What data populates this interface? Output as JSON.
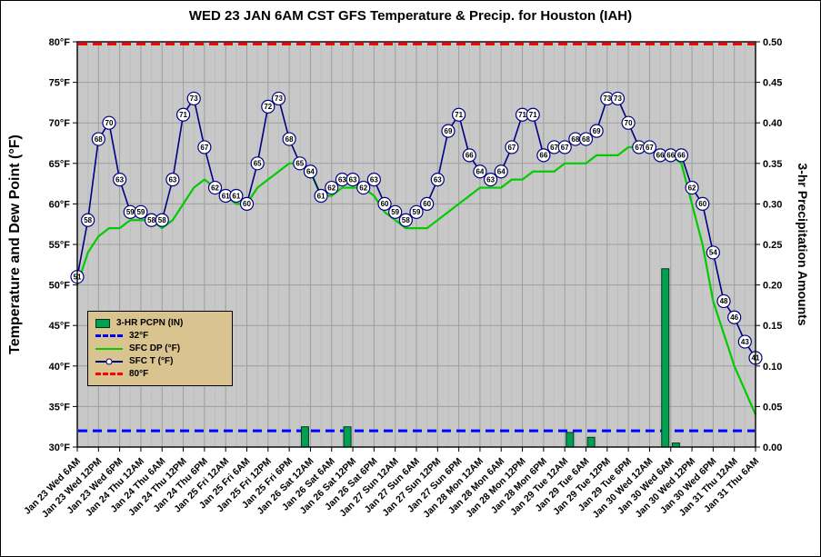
{
  "title": "WED 23 JAN 6AM CST GFS Temperature & Precip. for Houston (IAH)",
  "left_axis_title": "Temperature and Dew Point (°F)",
  "right_axis_title": "3-hr Precipitation Amounts",
  "colors": {
    "plot_background": "#C8C8C8",
    "grid_major": "#9E9E9E",
    "grid_minor": "#BDBDBD",
    "temperature_line": "#000080",
    "dewpoint_line": "#00CC00",
    "precip_bar": "#00A050",
    "precip_bar_border": "#003820",
    "freezing_line": "#0000FF",
    "eighty_line": "#FF0000",
    "legend_background": "#D9C38F"
  },
  "legend": {
    "items": [
      {
        "label": "3-HR PCPN (IN)",
        "swatch": "bar",
        "color": "#00A050"
      },
      {
        "label": "32°F",
        "swatch": "dashed",
        "color": "#0000FF"
      },
      {
        "label": "SFC DP (°F)",
        "swatch": "line",
        "color": "#00CC00"
      },
      {
        "label": "SFC T (°F)",
        "swatch": "line-marker",
        "color": "#000080"
      },
      {
        "label": "80°F",
        "swatch": "dashed",
        "color": "#FF0000"
      }
    ]
  },
  "chart_data": {
    "type": "line",
    "title": "WED 23 JAN 6AM CST GFS Temperature & Precip. for Houston (IAH)",
    "xlabel": "",
    "ylabel_left": "Temperature and Dew Point (°F)",
    "ylabel_right": "3-hr Precipitation Amounts",
    "grid": true,
    "legend_position": "middle-left",
    "interval_hours": 3,
    "x_tick_labels": [
      "Jan 23 Wed 6AM",
      "Jan 23 Wed 12PM",
      "Jan 23 Wed 6PM",
      "Jan 24 Thu 12AM",
      "Jan 24 Thu 6AM",
      "Jan 24 Thu 12PM",
      "Jan 24 Thu 6PM",
      "Jan 25 Fri 12AM",
      "Jan 25 Fri 6AM",
      "Jan 25 Fri 12PM",
      "Jan 25 Fri 6PM",
      "Jan 26 Sat 12AM",
      "Jan 26 Sat 6AM",
      "Jan 26 Sat 12PM",
      "Jan 26 Sat 6PM",
      "Jan 27 Sun 12AM",
      "Jan 27 Sun 6AM",
      "Jan 27 Sun 12PM",
      "Jan 27 Sun 6PM",
      "Jan 28 Mon 12AM",
      "Jan 28 Mon 6AM",
      "Jan 28 Mon 12PM",
      "Jan 28 Mon 6PM",
      "Jan 29 Tue 12AM",
      "Jan 29 Tue 6AM",
      "Jan 29 Tue 12PM",
      "Jan 29 Tue 6PM",
      "Jan 30 Wed 12AM",
      "Jan 30 Wed 6AM",
      "Jan 30 Wed 12PM",
      "Jan 30 Wed 6PM",
      "Jan 31 Thu 12AM",
      "Jan 31 Thu 6AM"
    ],
    "points_per_x_tick": 2,
    "left_axis": {
      "min": 30,
      "max": 80,
      "step": 5,
      "tick_labels": [
        "80°F",
        "75°F",
        "70°F",
        "65°F",
        "60°F",
        "55°F",
        "50°F",
        "45°F",
        "40°F",
        "35°F",
        "30°F"
      ]
    },
    "right_axis": {
      "min": 0.0,
      "max": 0.5,
      "step": 0.05,
      "tick_labels": [
        "0.50",
        "0.45",
        "0.40",
        "0.35",
        "0.30",
        "0.25",
        "0.20",
        "0.15",
        "0.10",
        "0.05",
        "0.00"
      ]
    },
    "series": [
      {
        "name": "SFC T (°F)",
        "type": "line",
        "markers": true,
        "color": "#000080",
        "axis": "left",
        "values": [
          51,
          58,
          68,
          70,
          63,
          59,
          59,
          58,
          58,
          63,
          71,
          73,
          67,
          62,
          61,
          61,
          60,
          65,
          72,
          73,
          68,
          65,
          64,
          61,
          62,
          63,
          63,
          62,
          63,
          60,
          59,
          58,
          59,
          60,
          63,
          69,
          71,
          66,
          64,
          63,
          64,
          67,
          71,
          71,
          66,
          67,
          67,
          68,
          68,
          69,
          73,
          73,
          70,
          67,
          67,
          66,
          66,
          66,
          62,
          60,
          54,
          48,
          46,
          43,
          41
        ]
      },
      {
        "name": "SFC DP (°F)",
        "type": "line",
        "markers": false,
        "color": "#00CC00",
        "axis": "left",
        "values": [
          50,
          54,
          56,
          57,
          57,
          58,
          58,
          58,
          57,
          58,
          60,
          62,
          63,
          62,
          61,
          60,
          60,
          62,
          63,
          64,
          65,
          65,
          64,
          61,
          61,
          62,
          62,
          62,
          61,
          59,
          58,
          57,
          57,
          57,
          58,
          59,
          60,
          61,
          62,
          62,
          62,
          63,
          63,
          64,
          64,
          64,
          65,
          65,
          65,
          66,
          66,
          66,
          67,
          67,
          67,
          66,
          66,
          65,
          60,
          55,
          48,
          44,
          40,
          37,
          34
        ]
      },
      {
        "name": "3-HR PCPN (IN)",
        "type": "bar",
        "color": "#00A050",
        "axis": "right",
        "values": [
          0,
          0,
          0,
          0,
          0,
          0,
          0,
          0,
          0,
          0,
          0,
          0,
          0,
          0,
          0,
          0,
          0,
          0,
          0,
          0,
          0,
          0,
          0.025,
          0,
          0,
          0,
          0.025,
          0,
          0,
          0,
          0,
          0,
          0,
          0,
          0,
          0,
          0,
          0,
          0,
          0,
          0,
          0,
          0,
          0,
          0,
          0,
          0,
          0.018,
          0,
          0.012,
          0,
          0,
          0,
          0,
          0,
          0,
          0.22,
          0.005,
          0,
          0,
          0,
          0,
          0,
          0,
          0
        ]
      },
      {
        "name": "32°F",
        "type": "hline",
        "color": "#0000FF",
        "axis": "left",
        "value": 32
      },
      {
        "name": "80°F",
        "type": "hline",
        "color": "#FF0000",
        "axis": "left",
        "value": 80
      }
    ]
  }
}
